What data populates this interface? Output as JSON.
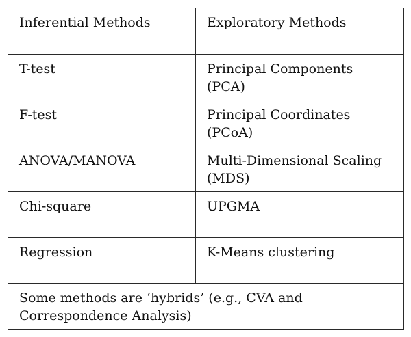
{
  "table": {
    "headers": [
      "Inferential Methods",
      "Exploratory  Methods"
    ],
    "rows": [
      [
        "T-test",
        "Principal Components (PCA)"
      ],
      [
        "F-test",
        "Principal Coordinates (PCoA)"
      ],
      [
        "ANOVA/MANOVA",
        "Multi-Dimensional Scaling (MDS)"
      ],
      [
        "Chi-square",
        "UPGMA"
      ],
      [
        "Regression",
        "K-Means clustering"
      ]
    ],
    "footer": "Some methods are ‘hybrids’ (e.g., CVA and Correspondence Analysis)"
  }
}
